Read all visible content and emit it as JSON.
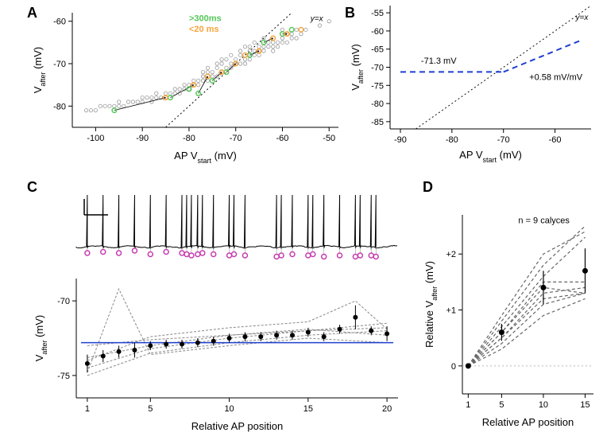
{
  "panelA": {
    "label": "A",
    "type": "scatter",
    "xlabel": "AP Vstart (mV)",
    "ylabel": "Vafter (mV)",
    "xlim": [
      -105,
      -48
    ],
    "ylim": [
      -85,
      -58
    ],
    "xticks": [
      -100,
      -90,
      -80,
      -70,
      -60,
      -50
    ],
    "yticks": [
      -80,
      -70,
      -60
    ],
    "label_fontsize": 13,
    "tick_fontsize": 11,
    "background_color": "#ffffff",
    "identity_line": {
      "color": "#000000",
      "dash": "2,3",
      "width": 1
    },
    "legend": {
      "items": [
        {
          "label": ">300ms",
          "color": "#55c758"
        },
        {
          "label": "<20 ms",
          "color": "#f7a63c"
        }
      ],
      "fontsize": 11
    },
    "identity_annotation": "y=x",
    "gray_points": {
      "color": "#999999",
      "marker": "circle-open",
      "size": 5
    },
    "green_points": {
      "color": "#55c758",
      "marker": "circle-open",
      "size": 6
    },
    "orange_points": {
      "color": "#f7a63c",
      "marker": "circle-open",
      "size": 6
    },
    "arrow_color": "#000000",
    "data_gray": [
      [
        -50,
        -60
      ],
      [
        -52,
        -61
      ],
      [
        -55,
        -62
      ],
      [
        -56,
        -63
      ],
      [
        -57,
        -64
      ],
      [
        -58,
        -64
      ],
      [
        -59,
        -63
      ],
      [
        -60,
        -62
      ],
      [
        -60,
        -65
      ],
      [
        -61,
        -66
      ],
      [
        -62,
        -67
      ],
      [
        -62,
        -65
      ],
      [
        -63,
        -66
      ],
      [
        -64,
        -67
      ],
      [
        -65,
        -68
      ],
      [
        -65,
        -66
      ],
      [
        -66,
        -67
      ],
      [
        -67,
        -69
      ],
      [
        -67,
        -68
      ],
      [
        -68,
        -69
      ],
      [
        -68,
        -70
      ],
      [
        -69,
        -70
      ],
      [
        -69,
        -68
      ],
      [
        -70,
        -69
      ],
      [
        -70,
        -70
      ],
      [
        -71,
        -70
      ],
      [
        -71,
        -71
      ],
      [
        -72,
        -71
      ],
      [
        -73,
        -72
      ],
      [
        -73,
        -70
      ],
      [
        -74,
        -71
      ],
      [
        -74,
        -73
      ],
      [
        -75,
        -73
      ],
      [
        -75,
        -72
      ],
      [
        -76,
        -72
      ],
      [
        -76,
        -74
      ],
      [
        -77,
        -73
      ],
      [
        -77,
        -74
      ],
      [
        -78,
        -74
      ],
      [
        -78,
        -75
      ],
      [
        -79,
        -75
      ],
      [
        -79,
        -74
      ],
      [
        -80,
        -75
      ],
      [
        -80,
        -76
      ],
      [
        -81,
        -75
      ],
      [
        -81,
        -76
      ],
      [
        -82,
        -76
      ],
      [
        -82,
        -77
      ],
      [
        -83,
        -76
      ],
      [
        -83,
        -77
      ],
      [
        -84,
        -77
      ],
      [
        -85,
        -77
      ],
      [
        -85,
        -78
      ],
      [
        -86,
        -78
      ],
      [
        -87,
        -77
      ],
      [
        -87,
        -78
      ],
      [
        -88,
        -78
      ],
      [
        -88,
        -79
      ],
      [
        -89,
        -78
      ],
      [
        -90,
        -79
      ],
      [
        -90,
        -78
      ],
      [
        -91,
        -79
      ],
      [
        -92,
        -79
      ],
      [
        -93,
        -79
      ],
      [
        -94,
        -80
      ],
      [
        -95,
        -79
      ],
      [
        -95,
        -80
      ],
      [
        -96,
        -80
      ],
      [
        -97,
        -80
      ],
      [
        -98,
        -80
      ],
      [
        -99,
        -80
      ],
      [
        -100,
        -81
      ],
      [
        -101,
        -81
      ],
      [
        -102,
        -81
      ],
      [
        -63,
        -65
      ],
      [
        -64,
        -64
      ],
      [
        -66,
        -65
      ],
      [
        -67,
        -66
      ],
      [
        -68,
        -66
      ],
      [
        -69,
        -67
      ],
      [
        -71,
        -68
      ],
      [
        -72,
        -69
      ],
      [
        -73,
        -69
      ],
      [
        -74,
        -70
      ],
      [
        -76,
        -71
      ],
      [
        -77,
        -72
      ],
      [
        -64,
        -66
      ],
      [
        -65,
        -67
      ],
      [
        -66,
        -68
      ],
      [
        -67,
        -67
      ],
      [
        -57,
        -62
      ],
      [
        -58,
        -63
      ],
      [
        -59,
        -65
      ],
      [
        -60,
        -64
      ],
      [
        -61,
        -65
      ],
      [
        -62,
        -66
      ]
    ],
    "data_green": [
      [
        -96,
        -81
      ],
      [
        -84,
        -78
      ],
      [
        -78,
        -77
      ],
      [
        -75,
        -74
      ],
      [
        -80,
        -76
      ],
      [
        -72,
        -72
      ],
      [
        -67,
        -68
      ],
      [
        -64,
        -65
      ],
      [
        -60,
        -63
      ],
      [
        -58,
        -62
      ]
    ],
    "data_orange": [
      [
        -85,
        -78
      ],
      [
        -79,
        -75
      ],
      [
        -76,
        -73
      ],
      [
        -73,
        -72
      ],
      [
        -70,
        -70
      ],
      [
        -68,
        -68
      ],
      [
        -65,
        -67
      ],
      [
        -62,
        -64
      ],
      [
        -59,
        -63
      ],
      [
        -56,
        -62
      ]
    ],
    "arrows": [
      [
        -96,
        -81,
        -85,
        -78
      ],
      [
        -84,
        -78,
        -79,
        -75
      ],
      [
        -78,
        -77,
        -76,
        -73
      ],
      [
        -75,
        -74,
        -73,
        -72
      ],
      [
        -72,
        -72,
        -70,
        -70
      ],
      [
        -67,
        -68,
        -65,
        -67
      ],
      [
        -64,
        -65,
        -62,
        -64
      ],
      [
        -60,
        -63,
        -59,
        -63
      ]
    ]
  },
  "panelB": {
    "label": "B",
    "type": "line",
    "xlabel": "AP Vstart (mV)",
    "ylabel": "Vafter (mV)",
    "xlim": [
      -92,
      -53
    ],
    "ylim": [
      -87,
      -53
    ],
    "xticks": [
      -90,
      -80,
      -70,
      -60
    ],
    "yticks": [
      -85,
      -80,
      -75,
      -70,
      -65,
      -60,
      -55
    ],
    "label_fontsize": 13,
    "tick_fontsize": 11,
    "identity_line": {
      "color": "#000000",
      "dash": "2,3",
      "width": 1
    },
    "identity_annotation": "y=x",
    "blue_fit": {
      "color": "#1f3fd0",
      "dash": "7,5",
      "width": 2
    },
    "annotation_left": "-71.3 mV",
    "annotation_right": "+0.58 mV/mV",
    "fit_segments": [
      [
        -90,
        -71.3,
        -70,
        -71.3
      ],
      [
        -70,
        -71.3,
        -55,
        -62.6
      ]
    ],
    "annotation_fontsize": 11
  },
  "panelC": {
    "label": "C",
    "type": "line+scatter",
    "xlabel": "Relative AP position",
    "ylabel": "Vafter (mV)",
    "xlim": [
      0.3,
      20.7
    ],
    "ylim_lower": [
      -76.5,
      -68.5
    ],
    "xticks": [
      1,
      5,
      10,
      15,
      20
    ],
    "yticks_lower": [
      -75,
      -70
    ],
    "label_fontsize": 13,
    "tick_fontsize": 11,
    "trace_color": "#000000",
    "trace_width": 1,
    "scalebar": {
      "x_len": 50,
      "y_len": 20,
      "color": "#000000"
    },
    "pink_markers": {
      "color": "#c63cb0",
      "fill": "#ffffff",
      "size": 6
    },
    "pink_data": [
      [
        1,
        -72
      ],
      [
        2,
        -73
      ],
      [
        3,
        -72
      ],
      [
        4,
        -74
      ],
      [
        5,
        -71
      ],
      [
        6,
        -73
      ],
      [
        7,
        -72
      ],
      [
        7.3,
        -71
      ],
      [
        7.6,
        -70
      ],
      [
        8,
        -71
      ],
      [
        8.3,
        -72
      ],
      [
        9,
        -71
      ],
      [
        10,
        -70
      ],
      [
        10.3,
        -71
      ],
      [
        11,
        -70
      ],
      [
        13,
        -69
      ],
      [
        13.3,
        -70
      ],
      [
        14,
        -71
      ],
      [
        15,
        -70
      ],
      [
        15.3,
        -71
      ],
      [
        16,
        -69
      ],
      [
        17,
        -70
      ],
      [
        18,
        -69
      ],
      [
        18.3,
        -70
      ],
      [
        19,
        -70
      ],
      [
        19.3,
        -69
      ]
    ],
    "reference_line": {
      "color": "#1f3fd0",
      "width": 1.5,
      "y": -72.8
    },
    "gray_lines": {
      "color": "#888888",
      "dash": "3,2",
      "width": 1
    },
    "black_points": {
      "color": "#000000",
      "marker": "circle",
      "size": 6,
      "errorbar_width": 1
    },
    "lower_data": {
      "mean": [
        [
          1,
          -74.2
        ],
        [
          2,
          -73.7
        ],
        [
          3,
          -73.4
        ],
        [
          4,
          -73.3
        ],
        [
          5,
          -73.0
        ],
        [
          6,
          -72.9
        ],
        [
          7,
          -72.9
        ],
        [
          8,
          -72.8
        ],
        [
          9,
          -72.7
        ],
        [
          10,
          -72.5
        ],
        [
          11,
          -72.4
        ],
        [
          12,
          -72.4
        ],
        [
          13,
          -72.3
        ],
        [
          14,
          -72.3
        ],
        [
          15,
          -72.1
        ],
        [
          16,
          -72.4
        ],
        [
          17,
          -71.9
        ],
        [
          18,
          -71.1
        ],
        [
          19,
          -72.0
        ],
        [
          20,
          -72.2
        ]
      ],
      "err": [
        0.6,
        0.4,
        0.4,
        0.5,
        0.3,
        0.3,
        0.3,
        0.3,
        0.3,
        0.3,
        0.3,
        0.3,
        0.3,
        0.3,
        0.3,
        0.3,
        0.3,
        0.8,
        0.3,
        0.5
      ]
    },
    "gray_series": [
      [
        [
          1,
          -74.5
        ],
        [
          5,
          -73.2
        ],
        [
          10,
          -72.5
        ],
        [
          15,
          -72.0
        ],
        [
          20,
          -71.8
        ]
      ],
      [
        [
          1,
          -73.8
        ],
        [
          5,
          -73.0
        ],
        [
          10,
          -72.3
        ],
        [
          15,
          -71.9
        ],
        [
          20,
          -72.3
        ]
      ],
      [
        [
          1,
          -75.0
        ],
        [
          5,
          -73.5
        ],
        [
          10,
          -72.8
        ],
        [
          15,
          -72.3
        ],
        [
          20,
          -72.0
        ]
      ],
      [
        [
          1,
          -73.0
        ],
        [
          5,
          -72.6
        ],
        [
          10,
          -72.3
        ],
        [
          15,
          -72.0
        ],
        [
          20,
          -71.5
        ]
      ],
      [
        [
          1,
          -74.8
        ],
        [
          3,
          -69.2
        ],
        [
          5,
          -73.6
        ],
        [
          10,
          -73.0
        ],
        [
          15,
          -72.5
        ],
        [
          20,
          -72.8
        ]
      ],
      [
        [
          1,
          -74.0
        ],
        [
          5,
          -72.4
        ],
        [
          10,
          -71.8
        ],
        [
          15,
          -71.4
        ],
        [
          18,
          -70.0
        ],
        [
          20,
          -71.9
        ]
      ]
    ]
  },
  "panelD": {
    "label": "D",
    "type": "line+scatter",
    "xlabel": "Relative AP position",
    "ylabel": "Relative Vafter (mV)",
    "xlim": [
      0.3,
      16
    ],
    "ylim": [
      -0.5,
      2.7
    ],
    "xticks": [
      1,
      5,
      10,
      15
    ],
    "yticks": [
      0,
      1,
      2
    ],
    "ytick_labels": [
      "0",
      "+1",
      "+2"
    ],
    "label_fontsize": 13,
    "tick_fontsize": 11,
    "annotation": "n = 9 calyces",
    "annotation_fontsize": 11,
    "zero_line": {
      "color": "#bbbbbb",
      "dash": "2,3",
      "width": 1
    },
    "gray_lines": {
      "color": "#666666",
      "dash": "4,3",
      "width": 1.2
    },
    "black_points": {
      "color": "#000000",
      "marker": "circle",
      "size": 7,
      "errorbar_width": 1.2
    },
    "gray_series": [
      [
        [
          1,
          0
        ],
        [
          5,
          0.4
        ],
        [
          10,
          1.1
        ],
        [
          15,
          1.3
        ]
      ],
      [
        [
          1,
          0
        ],
        [
          5,
          0.5
        ],
        [
          10,
          1.3
        ],
        [
          15,
          1.4
        ]
      ],
      [
        [
          1,
          0
        ],
        [
          5,
          0.6
        ],
        [
          10,
          1.4
        ],
        [
          15,
          1.3
        ]
      ],
      [
        [
          1,
          0
        ],
        [
          5,
          0.7
        ],
        [
          10,
          1.6
        ],
        [
          15,
          2.3
        ]
      ],
      [
        [
          1,
          0
        ],
        [
          5,
          0.8
        ],
        [
          10,
          1.8
        ],
        [
          15,
          2.5
        ]
      ],
      [
        [
          1,
          0
        ],
        [
          5,
          0.5
        ],
        [
          10,
          1.2
        ],
        [
          15,
          1.3
        ]
      ],
      [
        [
          1,
          0
        ],
        [
          5,
          0.3
        ],
        [
          10,
          0.9
        ],
        [
          15,
          1.2
        ]
      ],
      [
        [
          1,
          0
        ],
        [
          5,
          0.9
        ],
        [
          10,
          2.0
        ],
        [
          15,
          2.4
        ]
      ],
      [
        [
          1,
          0
        ],
        [
          5,
          0.6
        ],
        [
          10,
          1.5
        ],
        [
          15,
          1.5
        ]
      ]
    ],
    "mean_data": {
      "mean": [
        [
          1,
          0
        ],
        [
          5,
          0.6
        ],
        [
          10,
          1.4
        ],
        [
          15,
          1.7
        ]
      ],
      "err": [
        0,
        0.15,
        0.3,
        0.4
      ]
    }
  }
}
